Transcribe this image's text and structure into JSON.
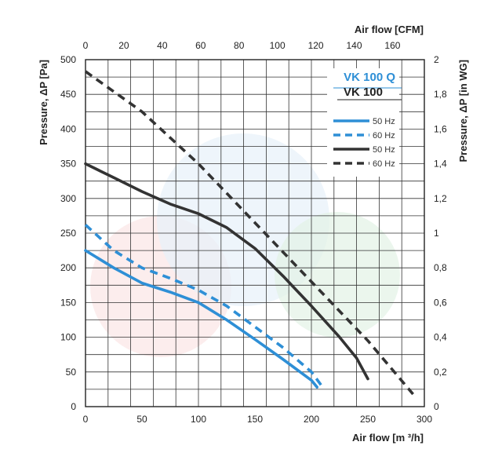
{
  "chart_data": {
    "type": "line",
    "title": "",
    "xlabel": "Air flow [m ³/h]",
    "xlabel_top": "Air flow [CFM]",
    "ylabel": "Pressure, ΔP [Pa]",
    "ylabel_right": "Pressure, ΔP [in WG]",
    "xlim": [
      0,
      300
    ],
    "ylim": [
      0,
      500
    ],
    "x_ticks": [
      "0",
      "50",
      "100",
      "150",
      "200",
      "250",
      "300"
    ],
    "y_ticks": [
      "0",
      "50",
      "100",
      "150",
      "200",
      "250",
      "300",
      "350",
      "400",
      "450",
      "500"
    ],
    "top_ticks": [
      "0",
      "20",
      "40",
      "60",
      "80",
      "100",
      "120",
      "140",
      "160"
    ],
    "right_ticks": [
      "0",
      "0,2",
      "0,4",
      "0,6",
      "0,8",
      "1",
      "1,2",
      "1,4",
      "1,6",
      "1,8",
      "2"
    ],
    "grid": true,
    "legend_placement": "top-right",
    "models": [
      {
        "name": "VK 100 Q",
        "color": "#2e8fd6"
      },
      {
        "name": "VK 100",
        "color": "#222222"
      }
    ],
    "series": [
      {
        "name": "50 Hz",
        "model": "VK 100 Q",
        "color": "#2e8fd6",
        "style": "solid",
        "x": [
          0,
          25,
          50,
          75,
          100,
          125,
          150,
          175,
          200,
          205
        ],
        "y": [
          225,
          200,
          178,
          165,
          150,
          125,
          97,
          68,
          38,
          28
        ]
      },
      {
        "name": "60 Hz",
        "model": "VK 100 Q",
        "color": "#2e8fd6",
        "style": "dashed",
        "x": [
          0,
          25,
          50,
          75,
          100,
          125,
          150,
          175,
          200,
          210
        ],
        "y": [
          262,
          225,
          200,
          185,
          168,
          145,
          115,
          85,
          50,
          28
        ]
      },
      {
        "name": "50 Hz",
        "model": "VK 100",
        "color": "#333333",
        "style": "solid",
        "x": [
          0,
          25,
          50,
          75,
          100,
          125,
          150,
          175,
          200,
          225,
          240,
          250
        ],
        "y": [
          350,
          330,
          310,
          292,
          278,
          258,
          228,
          188,
          145,
          100,
          70,
          40
        ]
      },
      {
        "name": "60 Hz",
        "model": "VK 100",
        "color": "#333333",
        "style": "dashed",
        "x": [
          0,
          50,
          100,
          150,
          200,
          250,
          290
        ],
        "y": [
          483,
          425,
          350,
          265,
          180,
          95,
          18
        ]
      }
    ]
  }
}
